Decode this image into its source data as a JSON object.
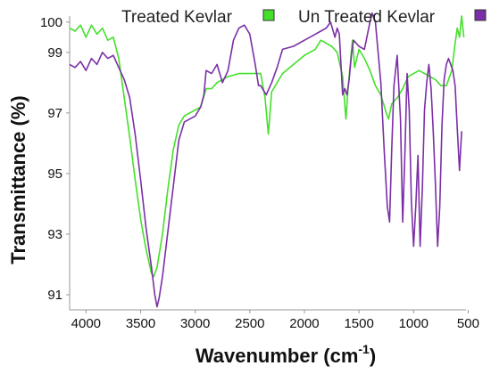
{
  "chart_data": {
    "type": "line",
    "xlabel": "Wavenumber (cm",
    "xlabel_sup": "-1",
    "xlabel_end": ")",
    "ylabel": "Transmittance (%)",
    "xlim": [
      4150,
      520
    ],
    "ylim": [
      90.5,
      100.2
    ],
    "x_ticks": [
      4000,
      3500,
      3000,
      2500,
      2000,
      1500,
      1000,
      500
    ],
    "y_ticks": [
      91,
      93,
      95,
      97,
      99,
      100
    ],
    "grid": false,
    "legend_position": "top",
    "series": [
      {
        "name": "Treated Kevlar",
        "color": "#44e02a",
        "x": [
          4150,
          4100,
          4050,
          4000,
          3950,
          3900,
          3850,
          3800,
          3750,
          3700,
          3650,
          3600,
          3550,
          3500,
          3450,
          3400,
          3380,
          3350,
          3300,
          3250,
          3200,
          3150,
          3100,
          3000,
          2950,
          2900,
          2850,
          2800,
          2700,
          2600,
          2500,
          2400,
          2360,
          2330,
          2300,
          2200,
          2100,
          2000,
          1900,
          1850,
          1800,
          1750,
          1700,
          1650,
          1620,
          1600,
          1580,
          1560,
          1540,
          1500,
          1450,
          1400,
          1350,
          1300,
          1250,
          1230,
          1200,
          1150,
          1100,
          1050,
          1000,
          950,
          900,
          850,
          800,
          750,
          700,
          650,
          620,
          600,
          580,
          560,
          540
        ],
        "y": [
          99.8,
          99.7,
          99.9,
          99.5,
          99.9,
          99.6,
          99.8,
          99.4,
          99.5,
          98.8,
          97.5,
          96.2,
          94.8,
          93.5,
          92.5,
          91.7,
          91.6,
          91.9,
          93.0,
          94.5,
          95.8,
          96.6,
          96.9,
          97.1,
          97.2,
          97.8,
          97.8,
          98.0,
          98.2,
          98.3,
          98.3,
          98.3,
          97.5,
          96.3,
          97.7,
          98.3,
          98.6,
          98.9,
          99.1,
          99.4,
          99.3,
          99.2,
          99.0,
          98.2,
          96.8,
          97.8,
          98.6,
          99.4,
          98.5,
          99.1,
          98.8,
          98.4,
          97.9,
          97.6,
          97.0,
          96.8,
          97.3,
          97.5,
          97.8,
          98.2,
          98.3,
          98.4,
          98.3,
          98.2,
          98.1,
          97.9,
          97.9,
          98.4,
          99.3,
          99.8,
          99.5,
          100.2,
          99.5
        ]
      },
      {
        "name": "Un Treated Kevlar",
        "color": "#7b2fa6",
        "x": [
          4150,
          4100,
          4050,
          4000,
          3950,
          3900,
          3850,
          3800,
          3750,
          3700,
          3650,
          3600,
          3550,
          3500,
          3450,
          3400,
          3370,
          3350,
          3330,
          3300,
          3250,
          3200,
          3150,
          3100,
          3050,
          3000,
          2950,
          2920,
          2900,
          2850,
          2800,
          2750,
          2700,
          2650,
          2600,
          2550,
          2500,
          2450,
          2420,
          2400,
          2350,
          2300,
          2250,
          2200,
          2100,
          2000,
          1950,
          1900,
          1850,
          1800,
          1760,
          1720,
          1700,
          1680,
          1650,
          1630,
          1610,
          1590,
          1570,
          1550,
          1500,
          1450,
          1400,
          1380,
          1350,
          1300,
          1270,
          1240,
          1220,
          1200,
          1180,
          1150,
          1120,
          1100,
          1080,
          1060,
          1040,
          1020,
          1000,
          980,
          960,
          940,
          920,
          900,
          880,
          860,
          840,
          820,
          800,
          780,
          760,
          740,
          720,
          700,
          680,
          660,
          640,
          620,
          600,
          580,
          560
        ],
        "y": [
          98.6,
          98.5,
          98.7,
          98.4,
          98.8,
          98.6,
          99.0,
          98.8,
          98.9,
          98.5,
          98.1,
          97.5,
          96.3,
          94.8,
          93.2,
          91.9,
          91.0,
          90.6,
          90.9,
          91.6,
          93.1,
          94.6,
          96.1,
          96.7,
          96.8,
          96.9,
          97.2,
          97.6,
          98.4,
          98.3,
          98.6,
          98.0,
          98.4,
          99.4,
          99.8,
          99.9,
          99.6,
          98.6,
          97.9,
          97.9,
          97.6,
          98.0,
          98.5,
          99.1,
          99.2,
          99.4,
          99.5,
          99.6,
          99.7,
          99.8,
          100.0,
          99.5,
          99.8,
          99.6,
          97.6,
          97.8,
          97.6,
          98.1,
          98.9,
          99.4,
          99.2,
          99.1,
          100.0,
          100.3,
          100.0,
          98.0,
          95.8,
          93.9,
          93.4,
          95.8,
          97.9,
          98.9,
          96.8,
          93.4,
          95.6,
          98.3,
          97.1,
          94.1,
          92.6,
          93.9,
          95.6,
          92.6,
          94.5,
          97.1,
          98.0,
          98.6,
          97.8,
          96.4,
          94.6,
          92.6,
          93.9,
          96.6,
          98.1,
          98.6,
          98.8,
          98.6,
          98.4,
          97.9,
          96.5,
          95.1,
          96.4
        ]
      }
    ]
  }
}
